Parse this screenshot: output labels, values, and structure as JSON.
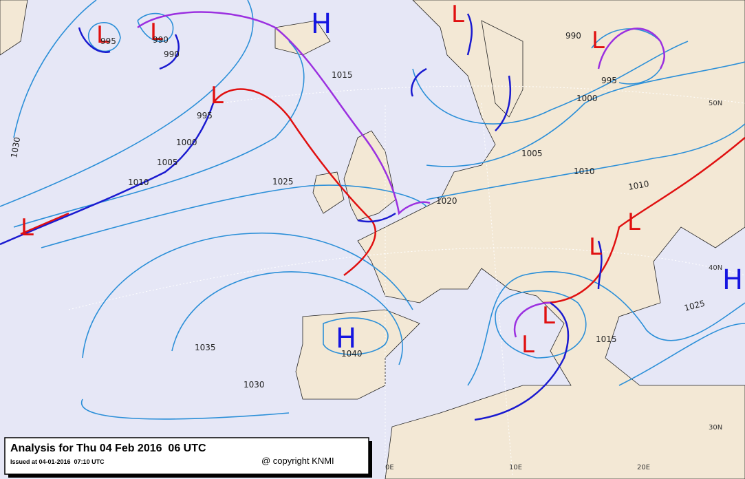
{
  "header": {
    "title": "Analysis for Thu 04 Feb 2016  06 UTC",
    "issued": "Issued at 04-01-2016  07:10 UTC",
    "copyright": "@ copyright KNMI"
  },
  "pressure_centers": [
    "L",
    "L",
    "H",
    "L",
    "L",
    "L",
    "L",
    "H",
    "L",
    "L",
    "L",
    "L",
    "H"
  ],
  "isobar_labels": [
    "995",
    "990",
    "990",
    "1015",
    "995",
    "1000",
    "1005",
    "1010",
    "1025",
    "1020",
    "1035",
    "1040",
    "1030",
    "1030",
    "990",
    "995",
    "1000",
    "1005",
    "1010",
    "1010",
    "1025",
    "1015"
  ],
  "graticule_labels": [
    "50N",
    "40N",
    "30N",
    "0E",
    "10E",
    "20E"
  ]
}
